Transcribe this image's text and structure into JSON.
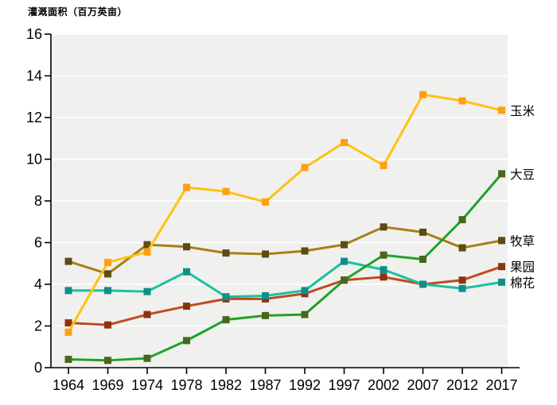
{
  "title": "灌溉面积（百万英亩）",
  "chart_data": {
    "type": "line",
    "title": "灌溉面积（百万英亩）",
    "xlabel": "",
    "ylabel": "灌溉面积（百万英亩）",
    "x": [
      1964,
      1969,
      1974,
      1978,
      1982,
      1987,
      1992,
      1997,
      2002,
      2007,
      2012,
      2017
    ],
    "ylim": [
      0,
      16
    ],
    "yticks": [
      0,
      2,
      4,
      6,
      8,
      10,
      12,
      14,
      16
    ],
    "grid": true,
    "plot_bg": "#f0f0ef",
    "grid_color": "#ffffff",
    "axis_color": "#000000",
    "legend_position": "right-of-line-ends",
    "series": [
      {
        "id": "orchard",
        "name": "果园",
        "line_color": "#c04a1d",
        "marker_color": "#8e3310",
        "values": [
          2.15,
          2.05,
          2.55,
          2.95,
          3.3,
          3.3,
          3.55,
          4.2,
          4.35,
          4.0,
          4.2,
          4.85
        ]
      },
      {
        "id": "hay",
        "name": "牧草",
        "line_color": "#a67f17",
        "marker_color": "#5e4a12",
        "values": [
          5.1,
          4.5,
          5.9,
          5.8,
          5.5,
          5.45,
          5.6,
          5.9,
          6.75,
          6.5,
          5.75,
          6.1
        ]
      },
      {
        "id": "cotton",
        "name": "棉花",
        "line_color": "#1bc0a0",
        "marker_color": "#128e88",
        "values": [
          3.7,
          3.7,
          3.65,
          4.6,
          3.4,
          3.45,
          3.7,
          5.1,
          4.7,
          4.0,
          3.8,
          4.1
        ]
      },
      {
        "id": "soybean",
        "name": "大豆",
        "line_color": "#1da327",
        "marker_color": "#4a661e",
        "values": [
          0.4,
          0.35,
          0.45,
          1.3,
          2.3,
          2.5,
          2.55,
          4.2,
          5.4,
          5.2,
          7.1,
          9.3
        ]
      },
      {
        "id": "corn",
        "name": "玉米",
        "line_color": "#ffc20e",
        "marker_color": "#ff9f0e",
        "values": [
          1.7,
          5.05,
          5.55,
          8.65,
          8.45,
          7.95,
          9.6,
          10.8,
          9.7,
          13.1,
          12.8,
          12.35
        ]
      }
    ]
  }
}
